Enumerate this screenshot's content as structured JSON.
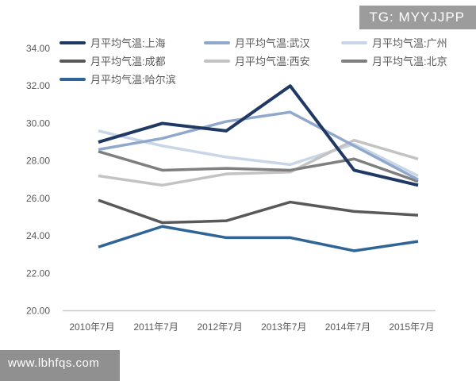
{
  "badge": {
    "text": "TG: MYYJJPP"
  },
  "watermark": {
    "text": "www.lbhfqs.com"
  },
  "chart_data": {
    "type": "line",
    "title": "",
    "xlabel": "",
    "ylabel": "",
    "categories": [
      "2010年7月",
      "2011年7月",
      "2012年7月",
      "2013年7月",
      "2014年7月",
      "2015年7月"
    ],
    "y_tick_labels": [
      "34.00",
      "32.00",
      "30.00",
      "28.00",
      "26.00",
      "24.00",
      "22.00",
      "20.00"
    ],
    "ylim": [
      20,
      34
    ],
    "grid": false,
    "legend_position": "top-left-three-columns",
    "axis_color": "#c9c9c9",
    "tick_text_color": "#595959",
    "series": [
      {
        "name": "月平均气温:上海",
        "color": "#1F3864",
        "values": [
          29.0,
          30.0,
          29.6,
          32.0,
          27.5,
          26.7
        ]
      },
      {
        "name": "月平均气温:武汉",
        "color": "#8FA8CC",
        "values": [
          28.6,
          29.2,
          30.1,
          30.6,
          28.8,
          27.0
        ]
      },
      {
        "name": "月平均气温:广州",
        "color": "#C9D6E8",
        "values": [
          29.6,
          28.8,
          28.2,
          27.8,
          28.9,
          27.2
        ]
      },
      {
        "name": "月平均气温:成都",
        "color": "#595959",
        "values": [
          25.9,
          24.7,
          24.8,
          25.8,
          25.3,
          25.1
        ]
      },
      {
        "name": "月平均气温:西安",
        "color": "#C3C3C3",
        "values": [
          27.2,
          26.7,
          27.3,
          27.4,
          29.1,
          28.1
        ]
      },
      {
        "name": "月平均气温:北京",
        "color": "#7F7F7F",
        "values": [
          28.5,
          27.5,
          27.6,
          27.5,
          28.1,
          26.9
        ]
      },
      {
        "name": "月平均气温:哈尔滨",
        "color": "#2E6496",
        "values": [
          23.4,
          24.5,
          23.9,
          23.9,
          23.2,
          23.7
        ]
      }
    ]
  }
}
